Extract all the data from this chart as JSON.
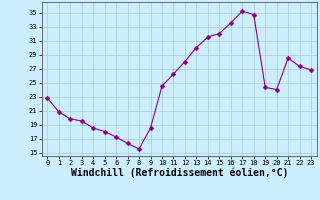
{
  "x": [
    0,
    1,
    2,
    3,
    4,
    5,
    6,
    7,
    8,
    9,
    10,
    11,
    12,
    13,
    14,
    15,
    16,
    17,
    18,
    19,
    20,
    21,
    22,
    23
  ],
  "y": [
    22.8,
    20.8,
    19.8,
    19.5,
    18.5,
    18.0,
    17.2,
    16.3,
    15.5,
    18.5,
    24.5,
    26.2,
    28.0,
    30.0,
    31.5,
    32.0,
    33.5,
    35.2,
    34.7,
    24.3,
    24.0,
    28.5,
    27.3,
    26.8
  ],
  "line_color": "#880088",
  "marker": "D",
  "markersize": 2.5,
  "bg_color": "#cceeff",
  "grid_color": "#aacccc",
  "xlabel": "Windchill (Refroidissement éolien,°C)",
  "xlabel_fontsize": 7,
  "yticks": [
    15,
    17,
    19,
    21,
    23,
    25,
    27,
    29,
    31,
    33,
    35
  ],
  "xticks": [
    0,
    1,
    2,
    3,
    4,
    5,
    6,
    7,
    8,
    9,
    10,
    11,
    12,
    13,
    14,
    15,
    16,
    17,
    18,
    19,
    20,
    21,
    22,
    23
  ],
  "ylim": [
    14.5,
    36.5
  ],
  "xlim": [
    -0.5,
    23.5
  ]
}
